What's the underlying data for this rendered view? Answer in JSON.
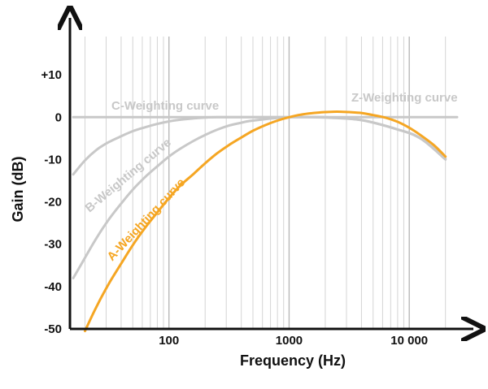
{
  "chart_data": {
    "type": "line",
    "xlabel": "Frequency (Hz)",
    "ylabel": "Gain (dB)",
    "x_scale": "log",
    "xlim": [
      15,
      25000
    ],
    "ylim": [
      -50,
      20
    ],
    "x_ticks": [
      {
        "value": 100,
        "label": "100"
      },
      {
        "value": 1000,
        "label": "1000"
      },
      {
        "value": 10000,
        "label": "10 000"
      }
    ],
    "y_ticks": [
      {
        "value": 10,
        "label": "+10"
      },
      {
        "value": 0,
        "label": "0"
      },
      {
        "value": -10,
        "label": "-10"
      },
      {
        "value": -20,
        "label": "-20"
      },
      {
        "value": -30,
        "label": "-30"
      },
      {
        "value": -40,
        "label": "-40"
      },
      {
        "value": -50,
        "label": "-50"
      }
    ],
    "grid": "vertical log gridlines",
    "series": [
      {
        "name": "A-Weighting curve",
        "color": "#f5a623",
        "x": [
          20,
          25,
          31.5,
          40,
          50,
          63,
          80,
          100,
          125,
          160,
          200,
          250,
          315,
          400,
          500,
          630,
          800,
          1000,
          1250,
          1600,
          2000,
          2500,
          3150,
          4000,
          5000,
          6300,
          8000,
          10000,
          12500,
          16000,
          20000
        ],
        "y": [
          -50.5,
          -44.7,
          -39.4,
          -34.6,
          -30.2,
          -26.2,
          -22.5,
          -19.1,
          -16.1,
          -13.4,
          -10.9,
          -8.6,
          -6.6,
          -4.8,
          -3.2,
          -1.9,
          -0.8,
          0,
          0.6,
          1.0,
          1.2,
          1.3,
          1.2,
          1.0,
          0.5,
          -0.1,
          -1.1,
          -2.5,
          -4.3,
          -6.6,
          -9.3
        ]
      },
      {
        "name": "B-Weighting curve",
        "color": "#c8c8c8",
        "x": [
          16,
          20,
          25,
          31.5,
          40,
          50,
          63,
          80,
          100,
          125,
          160,
          200,
          250,
          315,
          400,
          500,
          1000,
          2000,
          4000,
          8000,
          12500,
          20000
        ],
        "y": [
          -38,
          -33.2,
          -28.5,
          -24.2,
          -20.4,
          -17.1,
          -14.2,
          -11.6,
          -9.3,
          -7.4,
          -5.6,
          -4.2,
          -3.0,
          -2.0,
          -1.3,
          -0.8,
          0,
          -0.1,
          -0.7,
          -2.9,
          -5.1,
          -10
        ]
      },
      {
        "name": "C-Weighting curve",
        "color": "#c8c8c8",
        "x": [
          16,
          20,
          25,
          31.5,
          40,
          50,
          63,
          80,
          100,
          125,
          160,
          200,
          250,
          315,
          400,
          1000,
          2000,
          4000,
          8000,
          12500,
          20000
        ],
        "y": [
          -13.5,
          -10.2,
          -7.7,
          -5.9,
          -4.5,
          -3.3,
          -2.4,
          -1.6,
          -1.0,
          -0.6,
          -0.3,
          -0.1,
          0,
          0,
          0,
          0,
          0,
          -0.7,
          -2.9,
          -5.0,
          -9.8
        ]
      },
      {
        "name": "Z-Weighting curve",
        "color": "#c8c8c8",
        "x": [
          16,
          25000
        ],
        "y": [
          0,
          0
        ]
      }
    ]
  }
}
